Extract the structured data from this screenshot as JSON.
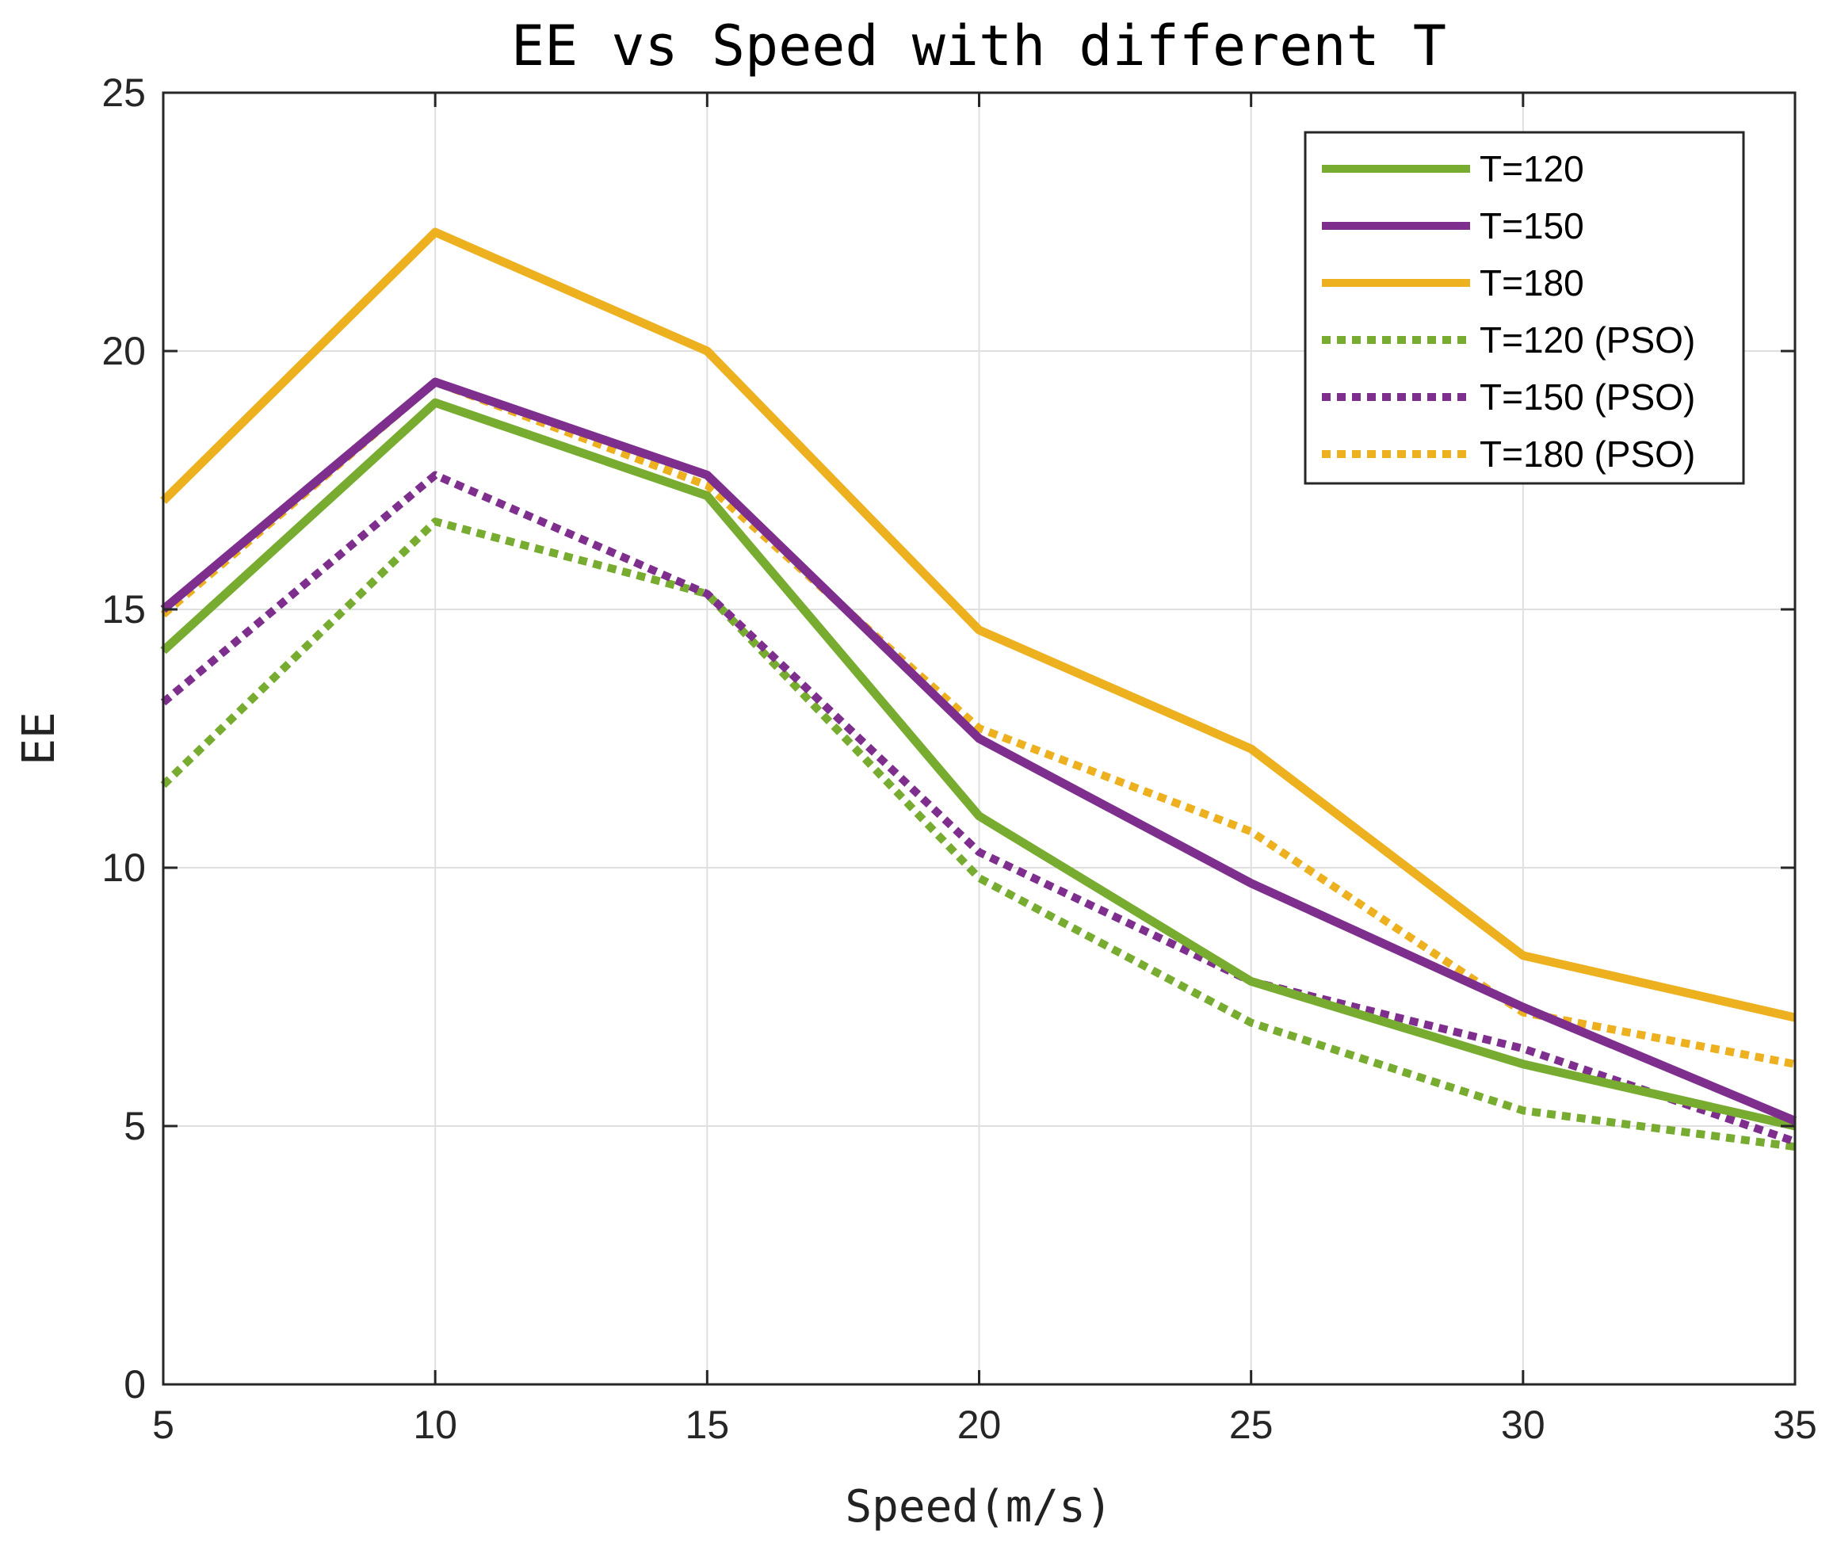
{
  "chart_data": {
    "type": "line",
    "title": "EE vs Speed with different T",
    "xlabel": "Speed(m/s)",
    "ylabel": "EE",
    "xlim": [
      5,
      35
    ],
    "ylim": [
      0,
      25
    ],
    "xticks": [
      5,
      10,
      15,
      20,
      25,
      30,
      35
    ],
    "yticks": [
      0,
      5,
      10,
      15,
      20,
      25
    ],
    "grid": true,
    "legend_position": "top-right",
    "x": [
      5,
      10,
      15,
      20,
      25,
      30,
      35
    ],
    "series": [
      {
        "name": "T=120",
        "style": "solid",
        "color": "#77AC30",
        "values": [
          14.2,
          19.0,
          17.2,
          11.0,
          7.8,
          6.2,
          5.0
        ]
      },
      {
        "name": "T=150",
        "style": "solid",
        "color": "#7E2F8E",
        "values": [
          15.0,
          19.4,
          17.6,
          12.5,
          9.7,
          7.3,
          5.1
        ]
      },
      {
        "name": "T=180",
        "style": "solid",
        "color": "#EDB120",
        "values": [
          17.1,
          22.3,
          20.0,
          14.6,
          12.3,
          8.3,
          7.1
        ]
      },
      {
        "name": "T=120 (PSO)",
        "style": "dotted",
        "color": "#77AC30",
        "values": [
          11.6,
          16.7,
          15.3,
          9.8,
          7.0,
          5.3,
          4.6
        ]
      },
      {
        "name": "T=150 (PSO)",
        "style": "dotted",
        "color": "#7E2F8E",
        "values": [
          13.2,
          17.6,
          15.3,
          10.3,
          7.8,
          6.5,
          4.7
        ]
      },
      {
        "name": "T=180 (PSO)",
        "style": "dotted",
        "color": "#EDB120",
        "values": [
          14.9,
          19.4,
          17.4,
          12.7,
          10.7,
          7.2,
          6.2
        ]
      }
    ]
  }
}
